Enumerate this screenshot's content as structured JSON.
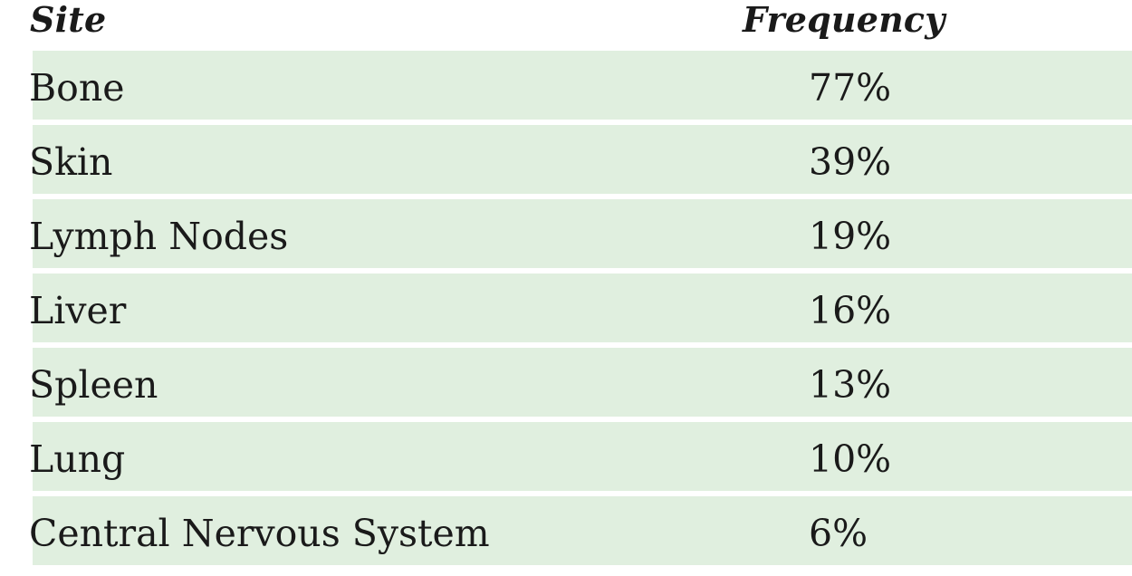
{
  "table": {
    "headers": {
      "site": "Site",
      "frequency": "Frequency"
    },
    "rows": [
      {
        "site": "Bone",
        "frequency": "77%"
      },
      {
        "site": "Skin",
        "frequency": "39%"
      },
      {
        "site": "Lymph Nodes",
        "frequency": "19%"
      },
      {
        "site": "Liver",
        "frequency": "16%"
      },
      {
        "site": "Spleen",
        "frequency": "13%"
      },
      {
        "site": "Lung",
        "frequency": "10%"
      },
      {
        "site": "Central Nervous System",
        "frequency": "6%"
      }
    ],
    "colors": {
      "row_background": "#e0efdf",
      "text": "#1a1a1a",
      "header_background": "#ffffff"
    }
  }
}
